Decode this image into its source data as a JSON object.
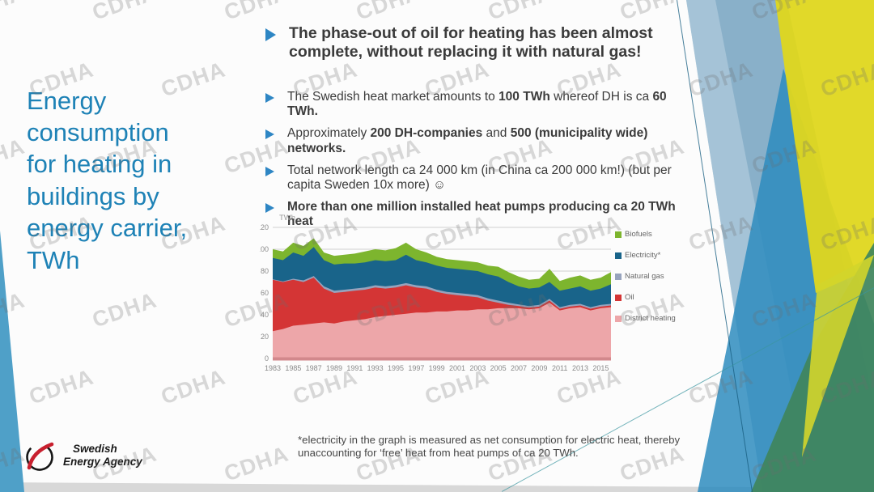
{
  "slide": {
    "title": "Energy consumption for heating in buildings by energy carrier, TWh",
    "watermark": "CDHA",
    "bullets": [
      {
        "style": "large",
        "segments": [
          {
            "text": "The phase-out of oil for heating has been almost complete, without replacing it with natural gas!",
            "bold": true
          }
        ]
      },
      {
        "style": "normal",
        "segments": [
          {
            "text": "The Swedish heat market amounts to ",
            "bold": false
          },
          {
            "text": "100 TWh",
            "bold": true
          },
          {
            "text": " whereof DH is ca ",
            "bold": false
          },
          {
            "text": "60 TWh.",
            "bold": true
          }
        ]
      },
      {
        "style": "normal",
        "segments": [
          {
            "text": "Approximately ",
            "bold": false
          },
          {
            "text": "200 DH-companies",
            "bold": true
          },
          {
            "text": " and ",
            "bold": false
          },
          {
            "text": "500 (municipality wide) networks.",
            "bold": true
          }
        ]
      },
      {
        "style": "normal",
        "segments": [
          {
            "text": "Total network length ca 24 000 km (in China ca 200 000 km!) (but per capita Sweden 10x more) ☺",
            "bold": false
          }
        ]
      },
      {
        "style": "normal",
        "segments": [
          {
            "text": "More than one million installed heat pumps producing ca 20 TWh heat",
            "bold": true
          }
        ]
      }
    ],
    "footnote": "*electricity in the graph is measured as net consumption for electric heat, thereby unaccounting for ‘free’ heat from heat pumps of ca 20 TWh.",
    "logo": {
      "line1": "Swedish",
      "line2": "Energy Agency"
    }
  },
  "colors": {
    "title_blue": "#1E82B6",
    "bullet_blue": "#2E86C4",
    "text_dark": "#3B3B3B",
    "axis_gray": "#8A8A8A",
    "baseline_salmon": "#D2888C"
  },
  "chart_data": {
    "type": "area",
    "stacked": true,
    "title": "",
    "unit_label": "TWh",
    "xlabel": "",
    "ylabel": "TWh",
    "ylim": [
      0,
      120
    ],
    "yticks": [
      0,
      20,
      40,
      60,
      80,
      100,
      120
    ],
    "grid": true,
    "legend_position": "right",
    "x": [
      1983,
      1984,
      1985,
      1986,
      1987,
      1988,
      1989,
      1990,
      1991,
      1992,
      1993,
      1994,
      1995,
      1996,
      1997,
      1998,
      1999,
      2000,
      2001,
      2002,
      2003,
      2004,
      2005,
      2006,
      2007,
      2008,
      2009,
      2010,
      2011,
      2012,
      2013,
      2014,
      2015,
      2016
    ],
    "x_ticks": [
      1983,
      1985,
      1987,
      1989,
      1991,
      1993,
      1995,
      1997,
      1999,
      2001,
      2003,
      2005,
      2007,
      2009,
      2011,
      2013,
      2015
    ],
    "series": [
      {
        "name": "District heating",
        "color": "#EDA6A9",
        "values": [
          25,
          27,
          30,
          31,
          32,
          33,
          32,
          34,
          35,
          36,
          38,
          39,
          40,
          41,
          42,
          42,
          43,
          43,
          44,
          44,
          45,
          45,
          46,
          46,
          46,
          45,
          46,
          51,
          44,
          46,
          47,
          44,
          46,
          47
        ]
      },
      {
        "name": "Oil",
        "color": "#D43535",
        "values": [
          47,
          43,
          42,
          39,
          42,
          31,
          28,
          27,
          27,
          27,
          27,
          25,
          25,
          26,
          23,
          22,
          18,
          16,
          14,
          13,
          11,
          8,
          5,
          3,
          2,
          1.5,
          1.5,
          2,
          1.5,
          1.5,
          1.5,
          1.5,
          1.5,
          1.5
        ]
      },
      {
        "name": "Natural gas",
        "color": "#97A3BD",
        "values": [
          0.5,
          0.5,
          1,
          1.5,
          1.5,
          2,
          2,
          2,
          2,
          2,
          2,
          2,
          2,
          2,
          2,
          2,
          2,
          2,
          2,
          2,
          2,
          2,
          2,
          2,
          1.5,
          1.5,
          1.5,
          1.5,
          1.5,
          1.5,
          1.5,
          1.5,
          1.5,
          1.5
        ]
      },
      {
        "name": "Electricity*",
        "color": "#19648A",
        "values": [
          19.5,
          19.5,
          24,
          22.5,
          26.5,
          24,
          24,
          24,
          23,
          23,
          23,
          23,
          23,
          26,
          23,
          22,
          22,
          22,
          22,
          22,
          22,
          22,
          22,
          19,
          16.5,
          16,
          16,
          15.5,
          15,
          15,
          16,
          15,
          15,
          18
        ]
      },
      {
        "name": "Biofuels",
        "color": "#7DB52E",
        "values": [
          8,
          8,
          9,
          9,
          8,
          7,
          8,
          8,
          9,
          10,
          10,
          10,
          11,
          11,
          10,
          9,
          8,
          8,
          8,
          8,
          8,
          8,
          9,
          9,
          9,
          8,
          8,
          12,
          9,
          10,
          10,
          10,
          10,
          11
        ]
      }
    ],
    "legend": [
      "Biofuels",
      "Electricity*",
      "Natural gas",
      "Oil",
      "District heating"
    ]
  }
}
